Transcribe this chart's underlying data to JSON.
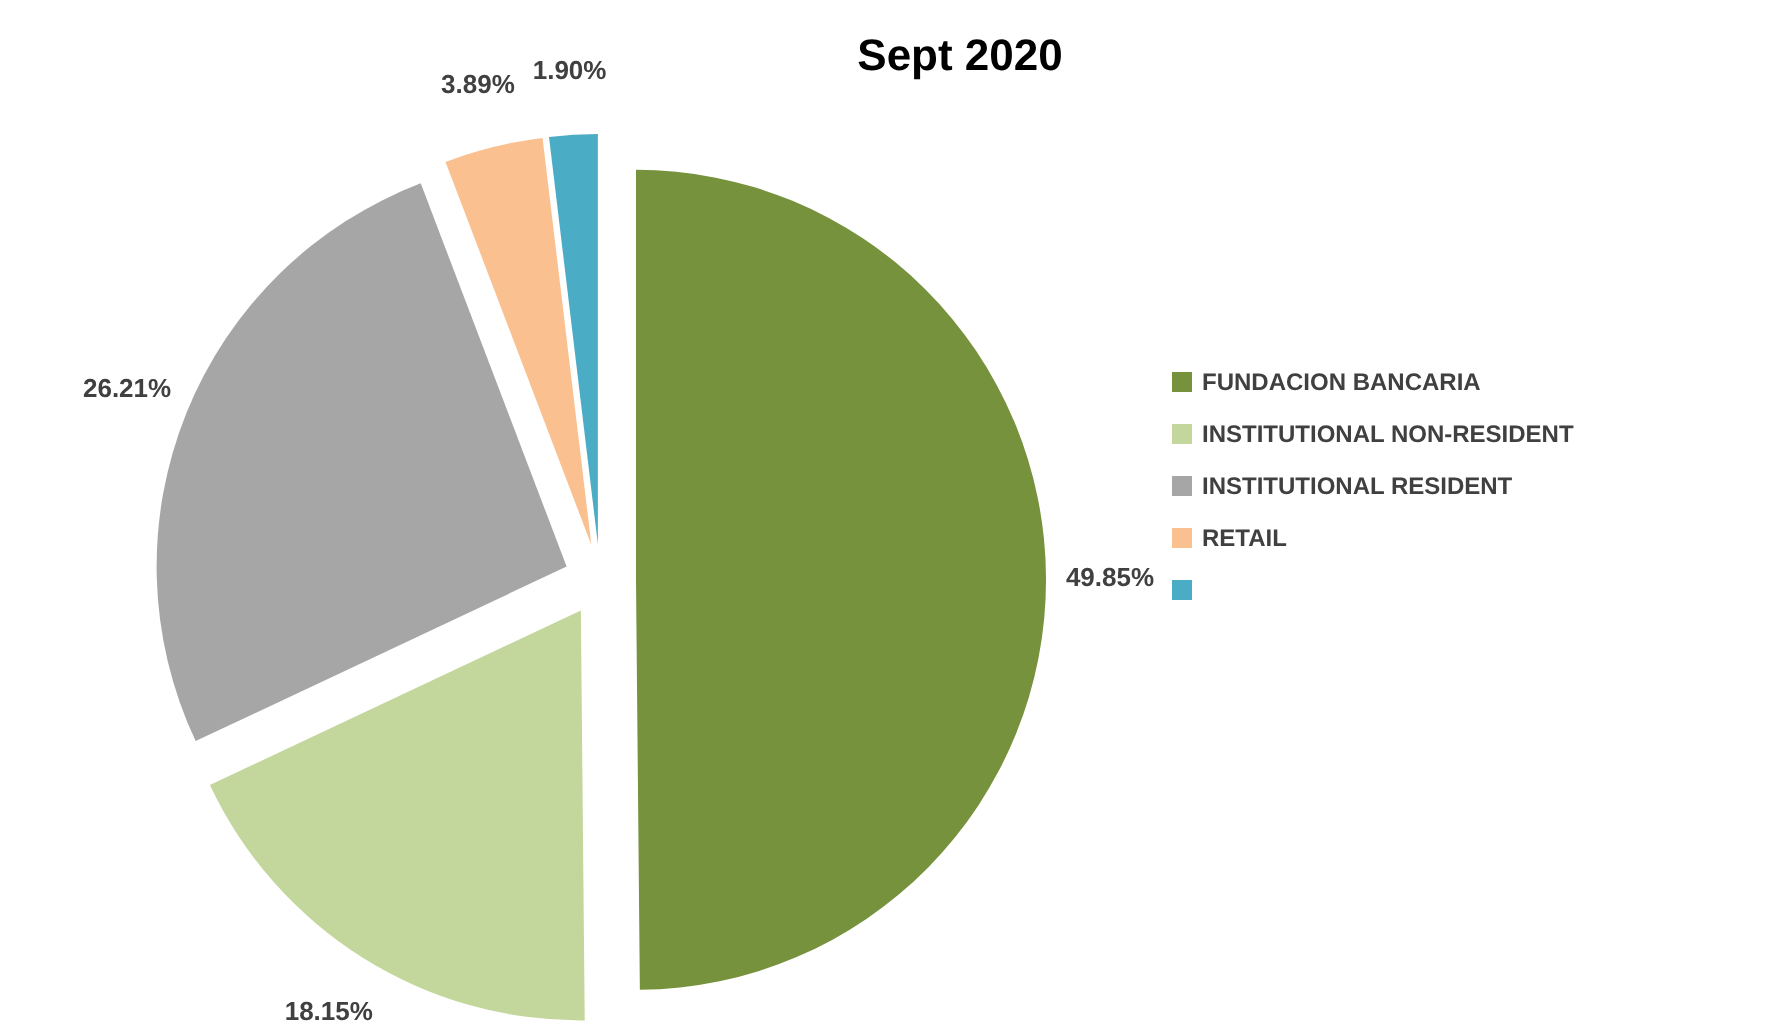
{
  "chart_data": {
    "type": "pie",
    "title": "Sept 2020",
    "categories": [
      "FUNDACION BANCARIA",
      "INSTITUTIONAL NON-RESIDENT",
      "INSTITUTIONAL RESIDENT",
      "RETAIL",
      null
    ],
    "values": [
      49.85,
      18.15,
      26.21,
      3.89,
      1.9
    ],
    "colors": [
      "#76923c",
      "#c3d69b",
      "#a6a6a6",
      "#fac090",
      "#4bacc6"
    ],
    "value_labels": [
      "49.85%",
      "18.15%",
      "26.21%",
      "3.89%",
      "1.90%"
    ],
    "legend": "right"
  }
}
